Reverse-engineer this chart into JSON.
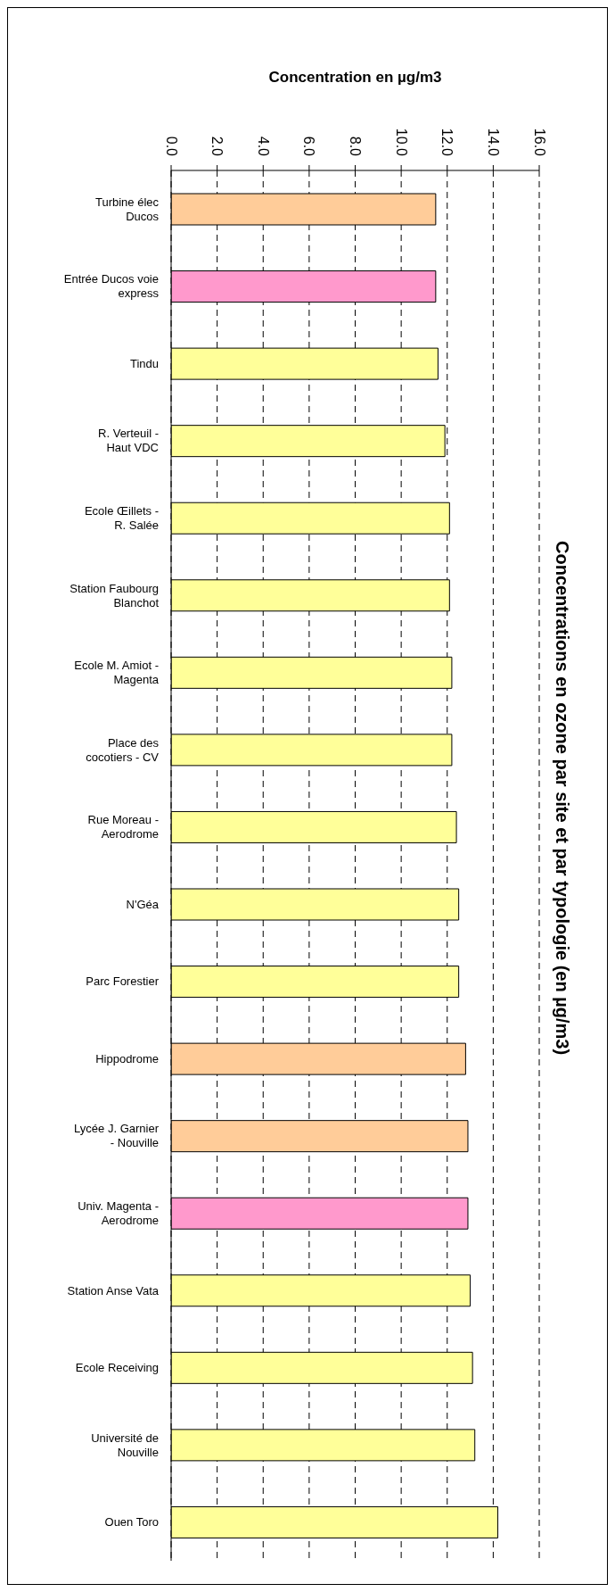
{
  "chart_data": {
    "type": "bar",
    "orientation": "horizontal",
    "title": "Concentrations en ozone par site et par typologie (en µg/m3)",
    "xlabel": "Concentration en µg/m3",
    "categories": [
      "Turbine élec Ducos",
      "Entrée Ducos voie express",
      "Tindu",
      "R. Verteuil - Haut VDC",
      "Ecole Œillets - R. Salée",
      "Station Faubourg Blanchot",
      "Ecole M. Amiot - Magenta",
      "Place des cocotiers - CV",
      "Rue Moreau - Aerodrome",
      "N'Géa",
      "Parc Forestier",
      "Hippodrome",
      "Lycée J. Garnier - Nouville",
      "Univ. Magenta - Aerodrome",
      "Station Anse Vata",
      "Ecole Receiving",
      "Université de Nouville",
      "Ouen Toro"
    ],
    "values": [
      11.5,
      11.5,
      11.6,
      11.9,
      12.1,
      12.1,
      12.2,
      12.2,
      12.4,
      12.5,
      12.5,
      12.8,
      12.9,
      12.9,
      13.0,
      13.1,
      13.2,
      14.2
    ],
    "colors": [
      "#ffcc99",
      "#ff99cc",
      "#ffff99",
      "#ffff99",
      "#ffff99",
      "#ffff99",
      "#ffff99",
      "#ffff99",
      "#ffff99",
      "#ffff99",
      "#ffff99",
      "#ffcc99",
      "#ffcc99",
      "#ff99cc",
      "#ffff99",
      "#ffff99",
      "#ffff99",
      "#ffff99"
    ],
    "xlim": [
      0,
      16
    ],
    "xticks": [
      {
        "value": 0,
        "label": "0.0"
      },
      {
        "value": 2,
        "label": "2.0"
      },
      {
        "value": 4,
        "label": "4.0"
      },
      {
        "value": 6,
        "label": "6.0"
      },
      {
        "value": 8,
        "label": "8.0"
      },
      {
        "value": 10,
        "label": "10.0"
      },
      {
        "value": 12,
        "label": "12.0"
      },
      {
        "value": 14,
        "label": "14.0"
      },
      {
        "value": 16,
        "label": "16.0"
      }
    ],
    "grid": "x"
  }
}
